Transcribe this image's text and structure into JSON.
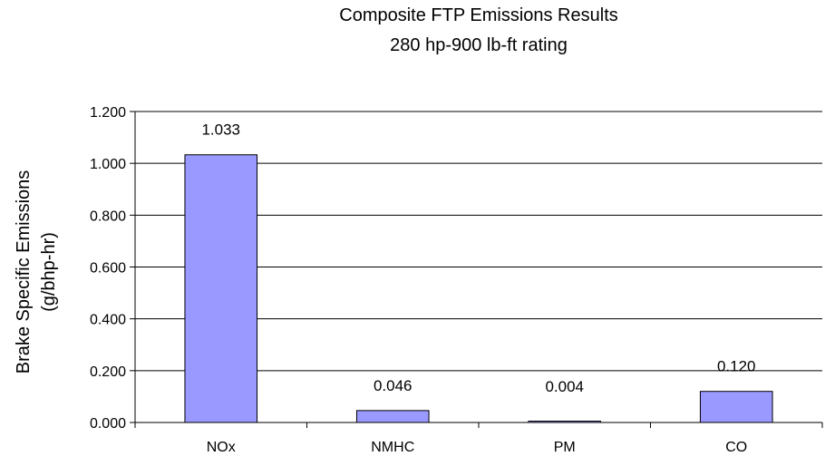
{
  "chart_data": {
    "type": "bar",
    "title": "Composite FTP Emissions Results",
    "subtitle": "280 hp-900 lb-ft rating",
    "ylabel_line1": "Brake Specific Emissions",
    "ylabel_line2": "(g/bhp-hr)",
    "xlabel": "",
    "categories": [
      "NOx",
      "NMHC",
      "PM",
      "CO"
    ],
    "values": [
      1.033,
      0.046,
      0.004,
      0.12
    ],
    "data_labels": [
      "1.033",
      "0.046",
      "0.004",
      "0.120"
    ],
    "ylim": [
      0,
      1.2
    ],
    "yticks": [
      0,
      0.2,
      0.4,
      0.6,
      0.8,
      1.0,
      1.2
    ],
    "ytick_labels": [
      "0.000",
      "0.200",
      "0.400",
      "0.600",
      "0.800",
      "1.000",
      "1.200"
    ],
    "grid": true,
    "legend": false,
    "bar_color": "#9999ff",
    "bar_edge_color": "#000000"
  }
}
